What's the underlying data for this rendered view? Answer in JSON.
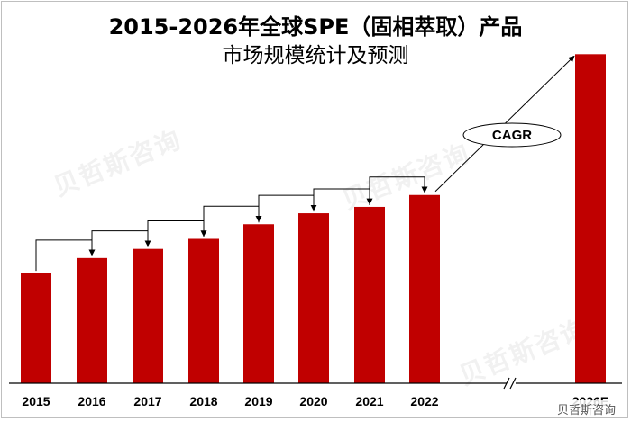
{
  "title_line1": "2015-2026年全球SPE（固相萃取）产品",
  "title_line2": "市场规模统计及预测",
  "watermark": "贝哲斯咨询",
  "weibo_mark": "贝哲斯咨询",
  "cagr_label": "CAGR",
  "colors": {
    "bar": "#c00000",
    "arrow": "#000000"
  },
  "chart_data": {
    "type": "bar",
    "categories": [
      "2015",
      "2016",
      "2017",
      "2018",
      "2019",
      "2020",
      "2021",
      "2022",
      "2026E"
    ],
    "values": [
      121,
      137,
      147,
      158,
      174,
      186,
      193,
      206,
      360
    ],
    "title": "2015-2026年全球SPE（固相萃取）产品市场规模统计及预测",
    "xlabel": "",
    "ylabel": "",
    "ylim": [
      0,
      380
    ],
    "axis_break_before": "2026E",
    "year_over_year_arrows": true,
    "grid": false
  }
}
